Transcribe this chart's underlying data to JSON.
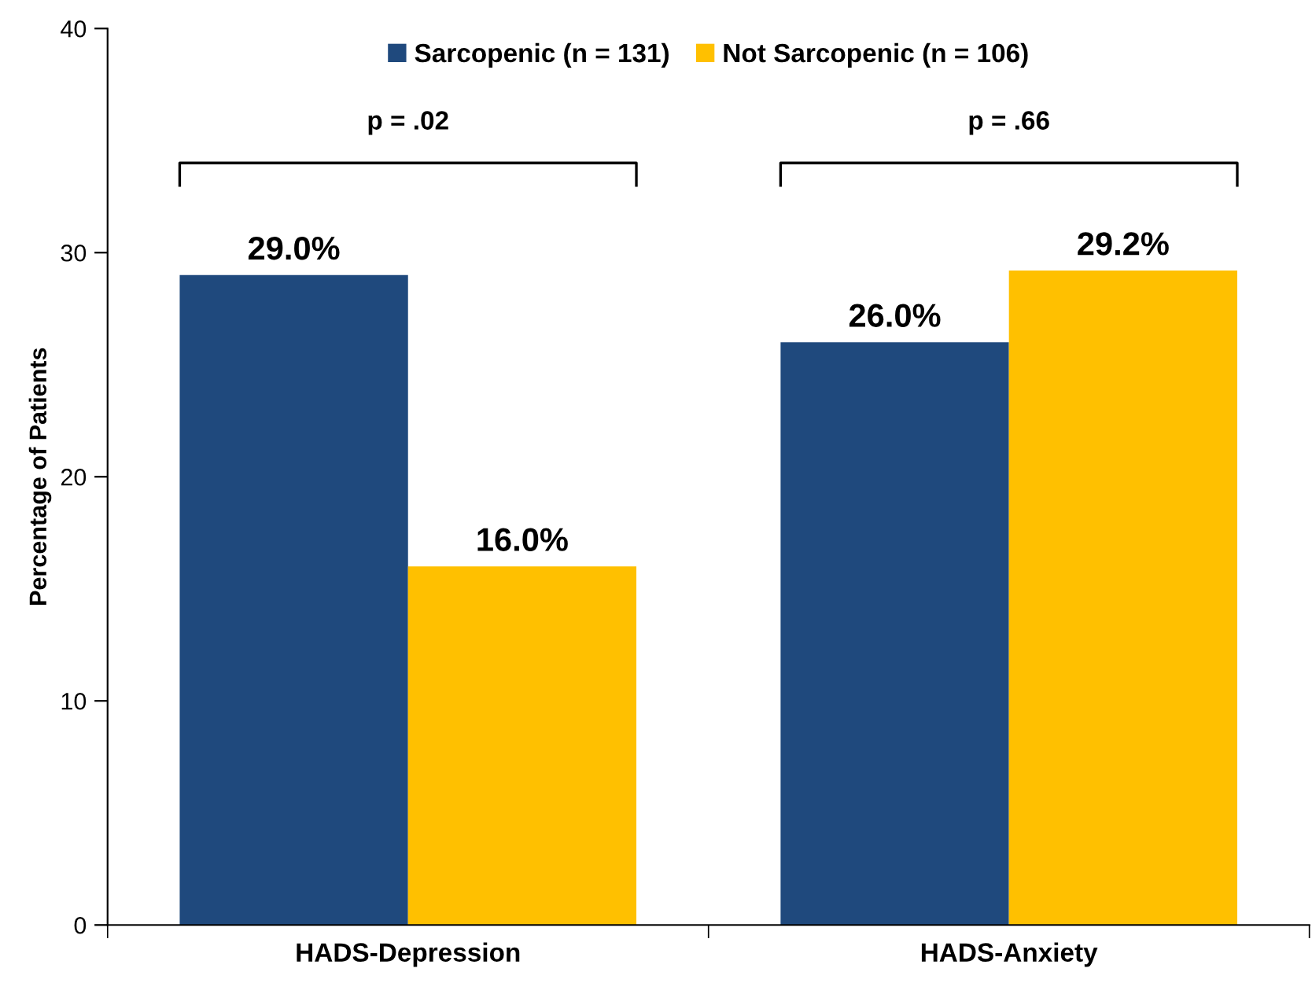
{
  "chart_data": {
    "type": "bar",
    "ylabel": "Percentage of Patients",
    "categories": [
      "HADS-Depression",
      "HADS-Anxiety"
    ],
    "series": [
      {
        "name": "Sarcopenic (n = 131)",
        "color": "#1f497d",
        "values": [
          29.0,
          26.0
        ],
        "value_labels": [
          "29.0%",
          "26.0%"
        ]
      },
      {
        "name": "Not Sarcopenic (n = 106)",
        "color": "#ffc000",
        "values": [
          16.0,
          29.2
        ],
        "value_labels": [
          "16.0%",
          "29.2%"
        ]
      }
    ],
    "annotations": [
      "p = .02",
      "p = .66"
    ],
    "ylim": [
      0,
      40
    ],
    "yticks": [
      0,
      10,
      20,
      30,
      40
    ],
    "grid": false,
    "legend": "top"
  }
}
